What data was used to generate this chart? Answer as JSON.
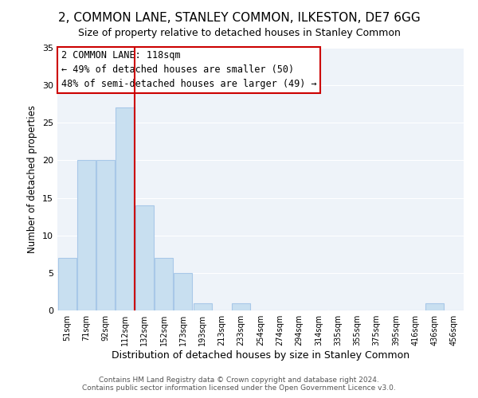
{
  "title": "2, COMMON LANE, STANLEY COMMON, ILKESTON, DE7 6GG",
  "subtitle": "Size of property relative to detached houses in Stanley Common",
  "xlabel": "Distribution of detached houses by size in Stanley Common",
  "ylabel": "Number of detached properties",
  "footer_lines": [
    "Contains HM Land Registry data © Crown copyright and database right 2024.",
    "Contains public sector information licensed under the Open Government Licence v3.0."
  ],
  "bar_labels": [
    "51sqm",
    "71sqm",
    "92sqm",
    "112sqm",
    "132sqm",
    "152sqm",
    "173sqm",
    "193sqm",
    "213sqm",
    "233sqm",
    "254sqm",
    "274sqm",
    "294sqm",
    "314sqm",
    "335sqm",
    "355sqm",
    "375sqm",
    "395sqm",
    "416sqm",
    "436sqm",
    "456sqm"
  ],
  "bar_values": [
    7,
    20,
    20,
    27,
    14,
    7,
    5,
    1,
    0,
    1,
    0,
    0,
    0,
    0,
    0,
    0,
    0,
    0,
    0,
    1,
    0
  ],
  "bar_color": "#c8dff0",
  "bar_edge_color": "#a8c8e8",
  "ylim": [
    0,
    35
  ],
  "yticks": [
    0,
    5,
    10,
    15,
    20,
    25,
    30,
    35
  ],
  "vline_color": "#cc0000",
  "annotation_title": "2 COMMON LANE: 118sqm",
  "annotation_line1": "← 49% of detached houses are smaller (50)",
  "annotation_line2": "48% of semi-detached houses are larger (49) →",
  "background_color": "#ffffff",
  "plot_bg_color": "#eef3f9",
  "grid_color": "#ffffff",
  "title_fontsize": 11,
  "subtitle_fontsize": 9,
  "footer_fontsize": 6.5
}
